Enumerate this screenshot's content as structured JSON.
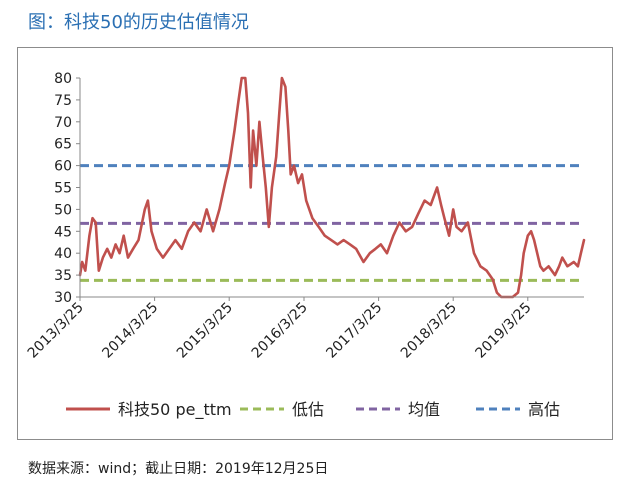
{
  "figure_title": "图：科技50的历史估值情况",
  "footer": {
    "source_label": "数据来源：",
    "source_value": "wind",
    "separator": "；",
    "cutoff_label": "截止日期：",
    "cutoff_value": "2019年12月25日"
  },
  "colors": {
    "pe_line": "#c0504d",
    "low_line": "#9bbb59",
    "mean_line": "#8064a2",
    "high_line": "#4f81bd",
    "axis": "#888888",
    "text": "#222222"
  },
  "chart_data": {
    "type": "line",
    "x_tick_labels": [
      "2013/3/25",
      "2014/3/25",
      "2015/3/25",
      "2016/3/25",
      "2017/3/25",
      "2018/3/25",
      "2019/3/25"
    ],
    "x_range": [
      "2013-03-25",
      "2019-12-25"
    ],
    "ylim": [
      30,
      80
    ],
    "y_ticks": [
      30,
      35,
      40,
      45,
      50,
      55,
      60,
      65,
      70,
      75,
      80
    ],
    "grid": false,
    "legend_position": "bottom",
    "series": [
      {
        "name": "科技50 pe_ttm",
        "kind": "line",
        "points": [
          [
            "2013-03-25",
            35
          ],
          [
            "2013-04-05",
            38
          ],
          [
            "2013-04-20",
            36
          ],
          [
            "2013-05-10",
            44
          ],
          [
            "2013-05-25",
            48
          ],
          [
            "2013-06-10",
            47
          ],
          [
            "2013-06-25",
            36
          ],
          [
            "2013-07-15",
            39
          ],
          [
            "2013-08-05",
            41
          ],
          [
            "2013-08-25",
            39
          ],
          [
            "2013-09-15",
            42
          ],
          [
            "2013-10-05",
            40
          ],
          [
            "2013-10-25",
            44
          ],
          [
            "2013-11-15",
            39
          ],
          [
            "2013-12-10",
            41
          ],
          [
            "2014-01-05",
            43
          ],
          [
            "2014-02-05",
            50
          ],
          [
            "2014-02-20",
            52
          ],
          [
            "2014-03-10",
            45
          ],
          [
            "2014-04-05",
            41
          ],
          [
            "2014-05-05",
            39
          ],
          [
            "2014-06-05",
            41
          ],
          [
            "2014-07-05",
            43
          ],
          [
            "2014-08-05",
            41
          ],
          [
            "2014-09-05",
            45
          ],
          [
            "2014-10-05",
            47
          ],
          [
            "2014-11-05",
            45
          ],
          [
            "2014-12-05",
            50
          ],
          [
            "2015-01-05",
            45
          ],
          [
            "2015-02-05",
            50
          ],
          [
            "2015-03-05",
            56
          ],
          [
            "2015-03-25",
            60
          ],
          [
            "2015-04-20",
            68
          ],
          [
            "2015-05-10",
            75
          ],
          [
            "2015-05-25",
            80
          ],
          [
            "2015-06-12",
            80
          ],
          [
            "2015-06-25",
            72
          ],
          [
            "2015-07-08",
            55
          ],
          [
            "2015-07-20",
            68
          ],
          [
            "2015-08-05",
            60
          ],
          [
            "2015-08-20",
            70
          ],
          [
            "2015-09-05",
            62
          ],
          [
            "2015-09-20",
            55
          ],
          [
            "2015-10-05",
            46
          ],
          [
            "2015-10-20",
            55
          ],
          [
            "2015-11-10",
            62
          ],
          [
            "2015-11-25",
            72
          ],
          [
            "2015-12-08",
            80
          ],
          [
            "2015-12-25",
            78
          ],
          [
            "2016-01-08",
            68
          ],
          [
            "2016-01-20",
            58
          ],
          [
            "2016-02-05",
            60
          ],
          [
            "2016-02-25",
            56
          ],
          [
            "2016-03-15",
            58
          ],
          [
            "2016-04-05",
            52
          ],
          [
            "2016-05-05",
            48
          ],
          [
            "2016-06-05",
            46
          ],
          [
            "2016-07-05",
            44
          ],
          [
            "2016-08-05",
            43
          ],
          [
            "2016-09-05",
            42
          ],
          [
            "2016-10-05",
            43
          ],
          [
            "2016-11-05",
            42
          ],
          [
            "2016-12-05",
            41
          ],
          [
            "2017-01-10",
            38
          ],
          [
            "2017-02-10",
            40
          ],
          [
            "2017-03-10",
            41
          ],
          [
            "2017-04-05",
            42
          ],
          [
            "2017-05-05",
            40
          ],
          [
            "2017-06-05",
            44
          ],
          [
            "2017-07-05",
            47
          ],
          [
            "2017-08-05",
            45
          ],
          [
            "2017-09-05",
            46
          ],
          [
            "2017-10-05",
            49
          ],
          [
            "2017-11-05",
            52
          ],
          [
            "2017-12-05",
            51
          ],
          [
            "2018-01-05",
            55
          ],
          [
            "2018-01-25",
            51
          ],
          [
            "2018-02-10",
            48
          ],
          [
            "2018-03-05",
            44
          ],
          [
            "2018-03-25",
            50
          ],
          [
            "2018-04-10",
            46
          ],
          [
            "2018-05-05",
            45
          ],
          [
            "2018-06-05",
            47
          ],
          [
            "2018-07-05",
            40
          ],
          [
            "2018-08-05",
            37
          ],
          [
            "2018-09-05",
            36
          ],
          [
            "2018-10-05",
            34
          ],
          [
            "2018-10-25",
            31
          ],
          [
            "2018-11-15",
            30
          ],
          [
            "2018-12-15",
            30
          ],
          [
            "2019-01-10",
            30
          ],
          [
            "2019-02-05",
            31
          ],
          [
            "2019-02-20",
            35
          ],
          [
            "2019-03-05",
            40
          ],
          [
            "2019-03-25",
            44
          ],
          [
            "2019-04-10",
            45
          ],
          [
            "2019-04-25",
            43
          ],
          [
            "2019-05-10",
            40
          ],
          [
            "2019-05-25",
            37
          ],
          [
            "2019-06-10",
            36
          ],
          [
            "2019-07-05",
            37
          ],
          [
            "2019-08-05",
            35
          ],
          [
            "2019-08-25",
            37
          ],
          [
            "2019-09-10",
            39
          ],
          [
            "2019-10-05",
            37
          ],
          [
            "2019-11-05",
            38
          ],
          [
            "2019-11-25",
            37
          ],
          [
            "2019-12-10",
            40
          ],
          [
            "2019-12-25",
            43
          ]
        ]
      },
      {
        "name": "低估",
        "kind": "hline",
        "value": 33.8
      },
      {
        "name": "均值",
        "kind": "hline",
        "value": 46.8
      },
      {
        "name": "高估",
        "kind": "hline",
        "value": 60
      }
    ]
  }
}
